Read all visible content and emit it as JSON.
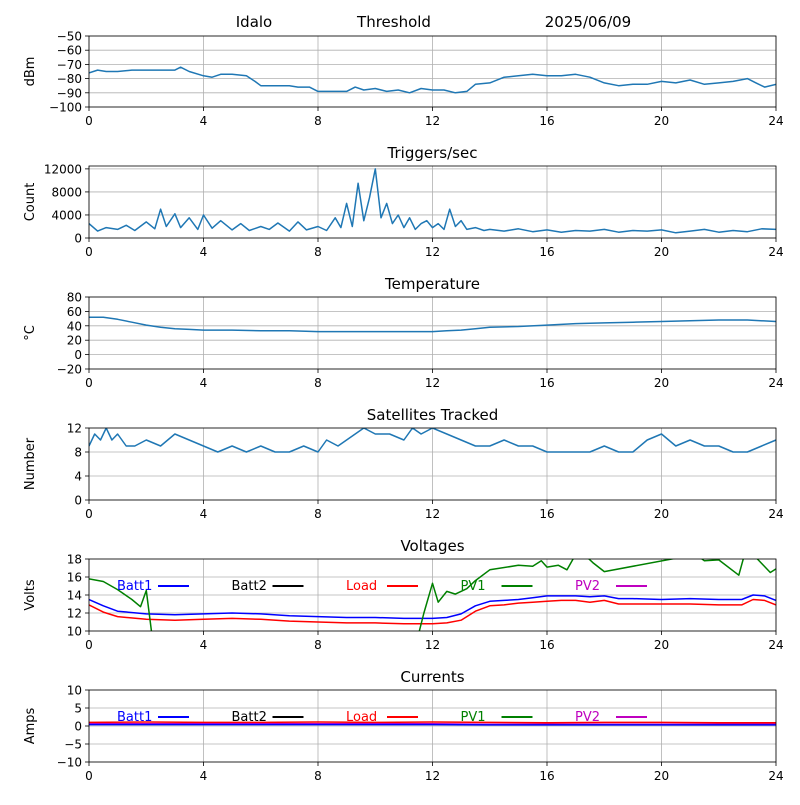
{
  "header": {
    "station": "Idalo",
    "mode": "Threshold",
    "date": "2025/06/09"
  },
  "colors": {
    "series_default": "#1f77b4",
    "grid": "#b0b0b0",
    "Batt1": "#0000ff",
    "Batt2": "#000000",
    "Load": "#ff0000",
    "PV1": "#008000",
    "PV2": "#bf00bf"
  },
  "chart_data": [
    {
      "id": "rssi",
      "type": "line",
      "title": "",
      "xlabel": "",
      "ylabel": "dBm",
      "xlim": [
        0,
        24
      ],
      "ylim": [
        -100,
        -50
      ],
      "xticks": [
        0,
        4,
        8,
        12,
        16,
        20,
        24
      ],
      "yticks": [
        -100,
        -90,
        -80,
        -70,
        -60,
        -50
      ],
      "grid": true,
      "series": [
        {
          "color": "#1f77b4",
          "x": [
            0,
            0.3,
            0.6,
            1,
            1.5,
            2,
            2.5,
            3,
            3.2,
            3.5,
            4,
            4.3,
            4.6,
            5,
            5.5,
            5.8,
            6,
            6.5,
            7,
            7.3,
            7.7,
            8,
            8.5,
            9,
            9.3,
            9.6,
            10,
            10.4,
            10.8,
            11.2,
            11.6,
            12,
            12.4,
            12.8,
            13.2,
            13.5,
            14,
            14.5,
            15,
            15.5,
            16,
            16.5,
            17,
            17.5,
            18,
            18.5,
            19,
            19.5,
            20,
            20.5,
            21,
            21.5,
            22,
            22.5,
            23,
            23.3,
            23.6,
            24
          ],
          "y": [
            -76,
            -74,
            -75,
            -75,
            -74,
            -74,
            -74,
            -74,
            -72,
            -75,
            -78,
            -79,
            -77,
            -77,
            -78,
            -82,
            -85,
            -85,
            -85,
            -86,
            -86,
            -89,
            -89,
            -89,
            -86,
            -88,
            -87,
            -89,
            -88,
            -90,
            -87,
            -88,
            -88,
            -90,
            -89,
            -84,
            -83,
            -79,
            -78,
            -77,
            -78,
            -78,
            -77,
            -79,
            -83,
            -85,
            -84,
            -84,
            -82,
            -83,
            -81,
            -84,
            -83,
            -82,
            -80,
            -83,
            -86,
            -84
          ]
        }
      ]
    },
    {
      "id": "triggers",
      "type": "line",
      "title": "Triggers/sec",
      "xlabel": "",
      "ylabel": "Count",
      "xlim": [
        0,
        24
      ],
      "ylim": [
        0,
        12500
      ],
      "xticks": [
        0,
        4,
        8,
        12,
        16,
        20,
        24
      ],
      "yticks": [
        0,
        4000,
        8000,
        12000
      ],
      "grid": true,
      "series": [
        {
          "color": "#1f77b4",
          "x": [
            0,
            0.3,
            0.6,
            1,
            1.3,
            1.6,
            2,
            2.3,
            2.5,
            2.7,
            3,
            3.2,
            3.5,
            3.8,
            4,
            4.3,
            4.6,
            5,
            5.3,
            5.6,
            6,
            6.3,
            6.6,
            7,
            7.3,
            7.6,
            8,
            8.3,
            8.6,
            8.8,
            9,
            9.2,
            9.4,
            9.6,
            9.8,
            10,
            10.2,
            10.4,
            10.6,
            10.8,
            11,
            11.2,
            11.4,
            11.6,
            11.8,
            12,
            12.2,
            12.4,
            12.6,
            12.8,
            13,
            13.2,
            13.5,
            13.8,
            14,
            14.5,
            15,
            15.5,
            16,
            16.5,
            17,
            17.5,
            18,
            18.5,
            19,
            19.5,
            20,
            20.5,
            21,
            21.5,
            22,
            22.5,
            23,
            23.5,
            24
          ],
          "y": [
            2500,
            1200,
            1800,
            1500,
            2200,
            1300,
            2800,
            1600,
            5000,
            2000,
            4200,
            1800,
            3500,
            1500,
            4000,
            1700,
            3000,
            1400,
            2500,
            1300,
            2000,
            1500,
            2600,
            1200,
            2800,
            1400,
            2000,
            1300,
            3500,
            1800,
            6000,
            2000,
            9500,
            3000,
            7000,
            12000,
            3500,
            6000,
            2500,
            4000,
            1800,
            3500,
            1500,
            2500,
            3000,
            1800,
            2500,
            1500,
            5000,
            2000,
            3000,
            1500,
            1800,
            1300,
            1500,
            1200,
            1600,
            1100,
            1400,
            1000,
            1300,
            1200,
            1500,
            1000,
            1300,
            1200,
            1400,
            900,
            1200,
            1500,
            1000,
            1300,
            1100,
            1600,
            1500
          ]
        }
      ]
    },
    {
      "id": "temperature",
      "type": "line",
      "title": "Temperature",
      "xlabel": "",
      "ylabel": "°C",
      "xlim": [
        0,
        24
      ],
      "ylim": [
        -20,
        80
      ],
      "xticks": [
        0,
        4,
        8,
        12,
        16,
        20,
        24
      ],
      "yticks": [
        -20,
        0,
        20,
        40,
        60,
        80
      ],
      "grid": true,
      "series": [
        {
          "color": "#1f77b4",
          "x": [
            0,
            0.5,
            1,
            1.5,
            2,
            2.5,
            3,
            3.5,
            4,
            5,
            6,
            7,
            8,
            9,
            10,
            11,
            12,
            12.5,
            13,
            13.5,
            14,
            15,
            16,
            17,
            18,
            19,
            20,
            21,
            22,
            23,
            24
          ],
          "y": [
            52,
            52,
            49,
            45,
            41,
            38,
            36,
            35,
            34,
            34,
            33,
            33,
            32,
            32,
            32,
            32,
            32,
            33,
            34,
            36,
            38,
            39,
            41,
            43,
            44,
            45,
            46,
            47,
            48,
            48,
            46
          ]
        }
      ]
    },
    {
      "id": "satellites",
      "type": "line",
      "title": "Satellites Tracked",
      "xlabel": "",
      "ylabel": "Number",
      "xlim": [
        0,
        24
      ],
      "ylim": [
        0,
        12
      ],
      "xticks": [
        0,
        4,
        8,
        12,
        16,
        20,
        24
      ],
      "yticks": [
        0,
        4,
        8,
        12
      ],
      "grid": true,
      "series": [
        {
          "color": "#1f77b4",
          "x": [
            0,
            0.2,
            0.4,
            0.6,
            0.8,
            1,
            1.3,
            1.6,
            2,
            2.5,
            3,
            3.5,
            4,
            4.5,
            5,
            5.5,
            6,
            6.5,
            7,
            7.5,
            8,
            8.3,
            8.7,
            9,
            9.3,
            9.6,
            10,
            10.5,
            11,
            11.3,
            11.6,
            12,
            12.5,
            13,
            13.5,
            14,
            14.5,
            15,
            15.5,
            16,
            16.5,
            17,
            17.5,
            18,
            18.5,
            19,
            19.5,
            20,
            20.5,
            21,
            21.5,
            22,
            22.5,
            23,
            23.5,
            24
          ],
          "y": [
            9,
            11,
            10,
            12,
            10,
            11,
            9,
            9,
            10,
            9,
            11,
            10,
            9,
            8,
            9,
            8,
            9,
            8,
            8,
            9,
            8,
            10,
            9,
            10,
            11,
            12,
            11,
            11,
            10,
            12,
            11,
            12,
            11,
            10,
            9,
            9,
            10,
            9,
            9,
            8,
            8,
            8,
            8,
            9,
            8,
            8,
            10,
            11,
            9,
            10,
            9,
            9,
            8,
            8,
            9,
            10
          ]
        }
      ]
    },
    {
      "id": "voltages",
      "type": "line",
      "title": "Voltages",
      "xlabel": "",
      "ylabel": "Volts",
      "xlim": [
        0,
        24
      ],
      "ylim": [
        10,
        18
      ],
      "xticks": [
        0,
        4,
        8,
        12,
        16,
        20,
        24
      ],
      "yticks": [
        10,
        12,
        14,
        16,
        18
      ],
      "grid": true,
      "legend": [
        "Batt1",
        "Batt2",
        "Load",
        "PV1",
        "PV2"
      ],
      "series": [
        {
          "name": "Batt1",
          "color": "#0000ff",
          "x": [
            0,
            0.5,
            1,
            2,
            3,
            4,
            5,
            6,
            7,
            8,
            9,
            10,
            11,
            12,
            12.5,
            13,
            13.5,
            14,
            14.5,
            15,
            15.5,
            16,
            16.5,
            17,
            17.5,
            18,
            18.5,
            19,
            20,
            21,
            22,
            22.8,
            23.2,
            23.6,
            24
          ],
          "y": [
            13.5,
            12.8,
            12.2,
            11.9,
            11.8,
            11.9,
            12.0,
            11.9,
            11.7,
            11.6,
            11.5,
            11.5,
            11.4,
            11.4,
            11.5,
            11.9,
            12.8,
            13.3,
            13.4,
            13.5,
            13.7,
            13.9,
            13.9,
            13.9,
            13.8,
            13.9,
            13.6,
            13.6,
            13.5,
            13.6,
            13.5,
            13.5,
            14.0,
            13.9,
            13.4
          ]
        },
        {
          "name": "Load",
          "color": "#ff0000",
          "x": [
            0,
            0.5,
            1,
            2,
            3,
            4,
            5,
            6,
            7,
            8,
            9,
            10,
            11,
            12,
            12.5,
            13,
            13.5,
            14,
            14.5,
            15,
            15.5,
            16,
            16.5,
            17,
            17.5,
            18,
            18.5,
            19,
            20,
            21,
            22,
            22.8,
            23.2,
            23.6,
            24
          ],
          "y": [
            12.9,
            12.1,
            11.6,
            11.3,
            11.2,
            11.3,
            11.4,
            11.3,
            11.1,
            11.0,
            10.9,
            10.9,
            10.8,
            10.8,
            10.9,
            11.2,
            12.2,
            12.8,
            12.9,
            13.1,
            13.2,
            13.3,
            13.4,
            13.4,
            13.2,
            13.4,
            13.0,
            13.0,
            13.0,
            13.0,
            12.9,
            12.9,
            13.5,
            13.4,
            12.9
          ]
        },
        {
          "name": "PV1",
          "color": "#008000",
          "x": [
            0,
            0.5,
            1,
            1.5,
            1.8,
            2.0,
            2.2,
            11.5,
            11.7,
            12.0,
            12.2,
            12.5,
            12.8,
            13.2,
            13.5,
            14,
            15,
            15.5,
            15.8,
            16,
            16.4,
            16.7,
            17,
            17.3,
            17.6,
            18,
            21.2,
            21.5,
            22,
            22.7,
            22.9,
            23.2,
            23.5,
            23.8,
            24
          ],
          "y": [
            15.8,
            15.5,
            14.6,
            13.5,
            12.7,
            14.5,
            9.5,
            9.5,
            12.0,
            15.3,
            13.2,
            14.4,
            14.1,
            14.7,
            15.6,
            16.8,
            17.3,
            17.2,
            17.8,
            17.1,
            17.3,
            16.8,
            18.5,
            18.5,
            17.6,
            16.6,
            18.5,
            17.8,
            17.9,
            16.2,
            18.5,
            18.5,
            17.5,
            16.5,
            16.9
          ]
        }
      ]
    },
    {
      "id": "currents",
      "type": "line",
      "title": "Currents",
      "xlabel": "",
      "ylabel": "Amps",
      "xlim": [
        0,
        24
      ],
      "ylim": [
        -10,
        10
      ],
      "xticks": [
        0,
        4,
        8,
        12,
        16,
        20,
        24
      ],
      "yticks": [
        -10,
        -5,
        0,
        5,
        10
      ],
      "grid": true,
      "legend": [
        "Batt1",
        "Batt2",
        "Load",
        "PV1",
        "PV2"
      ],
      "series": [
        {
          "name": "Load",
          "color": "#ff0000",
          "x": [
            0,
            2,
            4,
            6,
            8,
            10,
            12,
            14,
            16,
            18,
            20,
            22,
            24
          ],
          "y": [
            1.0,
            1.1,
            1.0,
            1.0,
            1.1,
            1.0,
            1.1,
            1.0,
            0.9,
            1.0,
            1.0,
            0.9,
            0.9
          ]
        },
        {
          "name": "PV2",
          "color": "#bf00bf",
          "x": [
            0,
            2,
            4,
            6,
            8,
            10,
            12,
            14,
            16,
            18,
            20,
            22,
            24
          ],
          "y": [
            0.6,
            0.6,
            0.6,
            0.6,
            0.6,
            0.6,
            0.6,
            0.5,
            0.5,
            0.5,
            0.5,
            0.5,
            0.5
          ]
        },
        {
          "name": "Batt1",
          "color": "#0000ff",
          "x": [
            0,
            2,
            4,
            6,
            8,
            10,
            12,
            14,
            16,
            18,
            20,
            22,
            24
          ],
          "y": [
            0.4,
            0.4,
            0.4,
            0.4,
            0.4,
            0.4,
            0.4,
            0.3,
            0.3,
            0.3,
            0.3,
            0.3,
            0.3
          ]
        }
      ]
    }
  ]
}
